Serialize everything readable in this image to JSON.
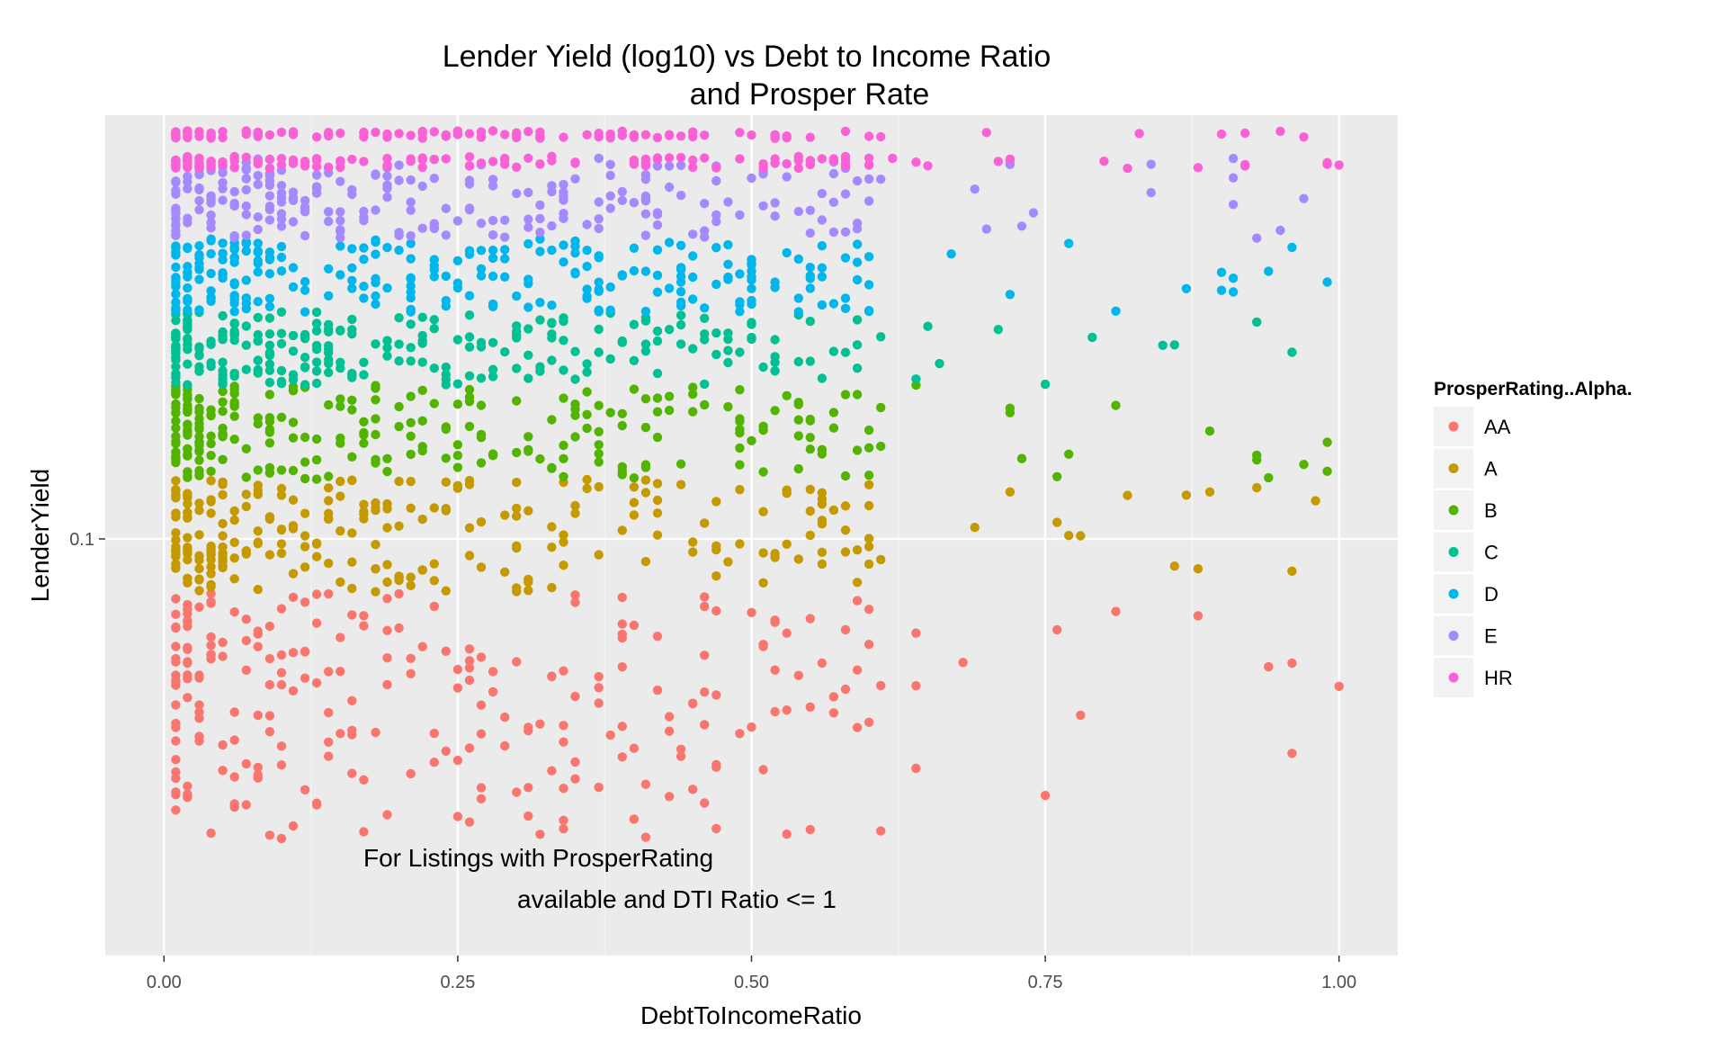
{
  "chart_data": {
    "type": "scatter",
    "title": "Lender Yield (log10) vs Debt to Income Ratio\nand Prosper Rate",
    "xlabel": "DebtToIncomeRatio",
    "ylabel": "LenderYield",
    "x_ticks": [
      {
        "value": 0.0,
        "label": "0.00"
      },
      {
        "value": 0.25,
        "label": "0.25"
      },
      {
        "value": 0.5,
        "label": "0.50"
      },
      {
        "value": 0.75,
        "label": "0.75"
      },
      {
        "value": 1.0,
        "label": "1.00"
      }
    ],
    "y_ticks": [
      {
        "value": 0.1,
        "label": "0.1"
      }
    ],
    "y_scale": "log10",
    "xlim": [
      -0.05,
      1.05
    ],
    "ylim": [
      0.028,
      0.365
    ],
    "grid": true,
    "legend": {
      "title": "ProsperRating..Alpha.",
      "placement": "right",
      "entries": [
        "AA",
        "A",
        "B",
        "C",
        "D",
        "E",
        "HR"
      ]
    },
    "annotation": "For Listings with ProsperRating\navailable and DTI Ratio <= 1",
    "series": [
      {
        "name": "AA",
        "color": "#F8766D",
        "yield_band": [
          0.04,
          0.085
        ]
      },
      {
        "name": "A",
        "color": "#C49A00",
        "yield_band": [
          0.085,
          0.12
        ]
      },
      {
        "name": "B",
        "color": "#53B400",
        "yield_band": [
          0.12,
          0.16
        ]
      },
      {
        "name": "C",
        "color": "#00C094",
        "yield_band": [
          0.16,
          0.2
        ]
      },
      {
        "name": "D",
        "color": "#00B6EB",
        "yield_band": [
          0.2,
          0.25
        ]
      },
      {
        "name": "E",
        "color": "#A58AFF",
        "yield_band": [
          0.25,
          0.32
        ]
      },
      {
        "name": "HR",
        "color": "#FB61D7",
        "yield_band": [
          0.3,
          0.34
        ]
      }
    ]
  }
}
